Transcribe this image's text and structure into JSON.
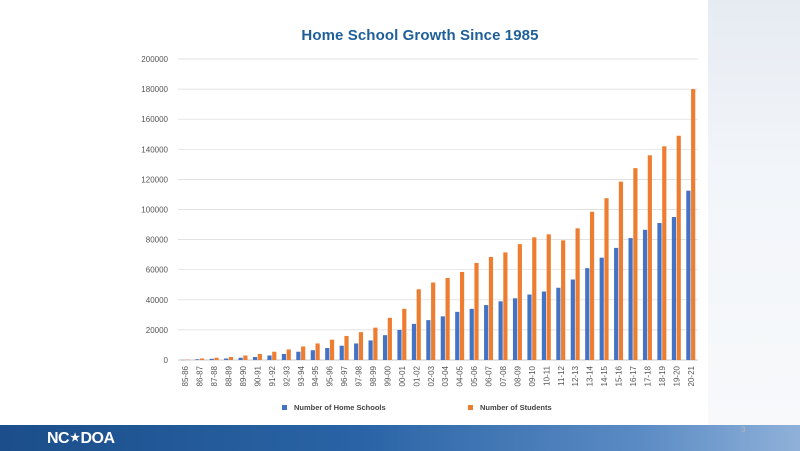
{
  "slide": {
    "page_number": "3",
    "logo": {
      "left": "NC",
      "star": "★",
      "right": "DOA"
    }
  },
  "colors": {
    "schools": "#4472c4",
    "students": "#ed7d31",
    "title": "#1f5f99",
    "footer": "#1b4e8a"
  },
  "chart_data": {
    "type": "bar",
    "title": "Home School Growth Since 1985",
    "xlabel": "",
    "ylabel": "",
    "ylim": [
      0,
      200000
    ],
    "yticks": [
      0,
      20000,
      40000,
      60000,
      80000,
      100000,
      120000,
      140000,
      160000,
      180000,
      200000
    ],
    "grid": true,
    "legend_position": "bottom",
    "categories": [
      "85-86",
      "86-87",
      "87-88",
      "88-89",
      "89-90",
      "90-91",
      "91-92",
      "92-93",
      "93-94",
      "94-95",
      "95-96",
      "96-97",
      "97-98",
      "98-99",
      "99-00",
      "00-01",
      "01-02",
      "02-03",
      "03-04",
      "04-05",
      "05-06",
      "06-07",
      "07-08",
      "08-09",
      "09-10",
      "10-11",
      "11-12",
      "12-13",
      "13-14",
      "14-15",
      "15-16",
      "16-17",
      "17-18",
      "18-19",
      "19-20",
      "20-21"
    ],
    "series": [
      {
        "name": "Number of Home Schools",
        "color": "#4472c4",
        "values": [
          100,
          500,
          800,
          1000,
          1500,
          2000,
          3000,
          4000,
          5500,
          6500,
          8000,
          9500,
          11000,
          13000,
          16500,
          20000,
          24000,
          26500,
          29000,
          32000,
          34000,
          36500,
          39000,
          41000,
          43500,
          45500,
          48000,
          53500,
          61000,
          68000,
          74500,
          81000,
          86500,
          91000,
          95000,
          112500
        ]
      },
      {
        "name": "Number of Students",
        "color": "#ed7d31",
        "values": [
          300,
          1000,
          1500,
          2000,
          3000,
          4000,
          5500,
          7000,
          9000,
          11000,
          13500,
          16000,
          18500,
          21500,
          28000,
          34000,
          47000,
          51500,
          54500,
          58500,
          64500,
          68500,
          71500,
          77000,
          81500,
          83500,
          79500,
          87500,
          98500,
          107500,
          118500,
          127500,
          136000,
          142000,
          149000,
          180000
        ]
      }
    ]
  }
}
